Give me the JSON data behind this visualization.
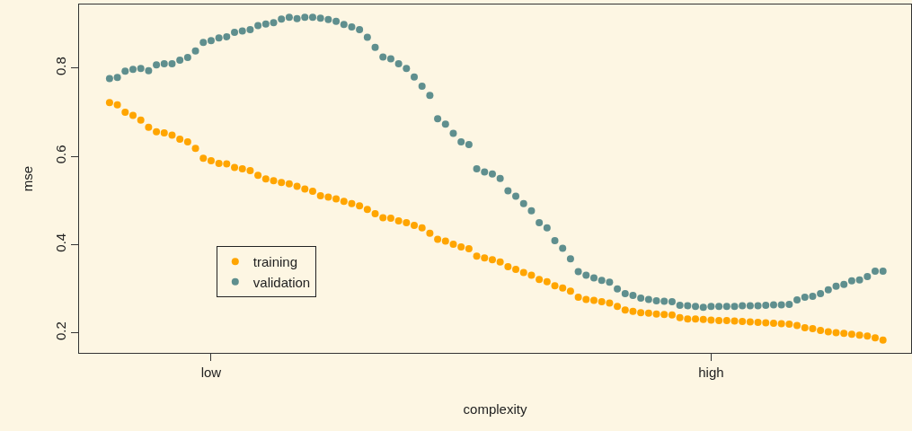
{
  "chart_data": {
    "type": "scatter",
    "xlabel": "complexity",
    "ylabel": "mse",
    "categories": [
      null,
      null,
      null,
      null,
      null,
      null,
      null,
      null,
      null,
      null,
      null,
      null,
      null,
      "low",
      null,
      null,
      null,
      null,
      null,
      null,
      null,
      null,
      null,
      null,
      null,
      null,
      null,
      null,
      null,
      null,
      null,
      null,
      null,
      null,
      null,
      null,
      null,
      null,
      null,
      null,
      null,
      null,
      null,
      null,
      null,
      null,
      null,
      null,
      null,
      null,
      null,
      null,
      null,
      null,
      null,
      null,
      null,
      null,
      null,
      null,
      null,
      null,
      null,
      null,
      null,
      null,
      null,
      null,
      null,
      null,
      null,
      null,
      null,
      null,
      null,
      null,
      null,
      "high",
      null,
      null,
      null,
      null,
      null,
      null,
      null,
      null,
      null,
      null,
      null,
      null,
      null,
      null,
      null,
      null,
      null,
      null,
      null,
      null,
      null,
      null
    ],
    "series": [
      {
        "name": "training",
        "color": "#ffa500",
        "values": [
          0.722,
          0.717,
          0.7,
          0.693,
          0.682,
          0.666,
          0.656,
          0.653,
          0.648,
          0.639,
          0.633,
          0.618,
          0.596,
          0.59,
          0.584,
          0.583,
          0.575,
          0.572,
          0.568,
          0.557,
          0.549,
          0.545,
          0.541,
          0.538,
          0.532,
          0.526,
          0.521,
          0.511,
          0.508,
          0.504,
          0.498,
          0.493,
          0.488,
          0.48,
          0.47,
          0.461,
          0.46,
          0.454,
          0.45,
          0.444,
          0.438,
          0.426,
          0.412,
          0.408,
          0.401,
          0.395,
          0.391,
          0.374,
          0.37,
          0.366,
          0.361,
          0.35,
          0.344,
          0.337,
          0.331,
          0.321,
          0.316,
          0.307,
          0.302,
          0.295,
          0.281,
          0.276,
          0.274,
          0.271,
          0.268,
          0.26,
          0.252,
          0.249,
          0.246,
          0.245,
          0.243,
          0.242,
          0.241,
          0.235,
          0.232,
          0.232,
          0.231,
          0.229,
          0.228,
          0.228,
          0.227,
          0.226,
          0.225,
          0.224,
          0.223,
          0.222,
          0.221,
          0.22,
          0.217,
          0.212,
          0.21,
          0.206,
          0.203,
          0.201,
          0.199,
          0.197,
          0.195,
          0.193,
          0.189,
          0.184
        ]
      },
      {
        "name": "validation",
        "color": "#5f8f8e",
        "values": [
          0.776,
          0.779,
          0.793,
          0.797,
          0.799,
          0.794,
          0.807,
          0.81,
          0.81,
          0.818,
          0.824,
          0.839,
          0.858,
          0.862,
          0.868,
          0.871,
          0.881,
          0.884,
          0.887,
          0.896,
          0.9,
          0.903,
          0.911,
          0.915,
          0.912,
          0.915,
          0.915,
          0.913,
          0.91,
          0.906,
          0.899,
          0.893,
          0.887,
          0.87,
          0.847,
          0.825,
          0.821,
          0.81,
          0.799,
          0.78,
          0.759,
          0.738,
          0.685,
          0.673,
          0.652,
          0.633,
          0.627,
          0.572,
          0.565,
          0.56,
          0.55,
          0.522,
          0.51,
          0.493,
          0.477,
          0.45,
          0.438,
          0.409,
          0.392,
          0.368,
          0.339,
          0.331,
          0.325,
          0.319,
          0.315,
          0.3,
          0.289,
          0.285,
          0.279,
          0.276,
          0.273,
          0.272,
          0.271,
          0.263,
          0.262,
          0.26,
          0.258,
          0.26,
          0.26,
          0.26,
          0.26,
          0.262,
          0.262,
          0.262,
          0.263,
          0.264,
          0.264,
          0.265,
          0.275,
          0.281,
          0.283,
          0.289,
          0.298,
          0.306,
          0.31,
          0.318,
          0.32,
          0.328,
          0.34,
          0.34
        ]
      }
    ],
    "ylim": [
      0.155,
      0.944
    ],
    "yticks": [
      0.2,
      0.4,
      0.6,
      0.8
    ],
    "grid": false,
    "legend": "bottom left",
    "marker": "circle"
  }
}
